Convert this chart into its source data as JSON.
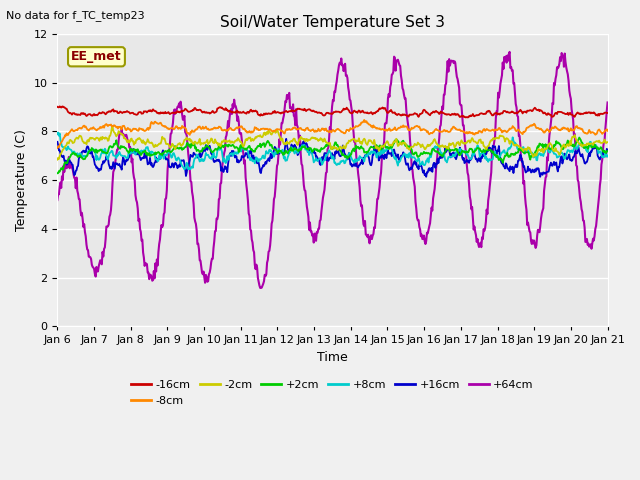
{
  "title": "Soil/Water Temperature Set 3",
  "xlabel": "Time",
  "ylabel": "Temperature (C)",
  "note": "No data for f_TC_temp23",
  "station_label": "EE_met",
  "ylim": [
    0,
    12
  ],
  "yticks": [
    0,
    2,
    4,
    6,
    8,
    10,
    12
  ],
  "x_tick_labels": [
    "Jan 6",
    "Jan 7",
    "Jan 8",
    "Jan 9",
    "Jan 10",
    "Jan 11",
    "Jan 12",
    "Jan 13",
    "Jan 14",
    "Jan 15",
    "Jan 16",
    "Jan 17",
    "Jan 18",
    "Jan 19",
    "Jan 20",
    "Jan 21"
  ],
  "series": [
    {
      "label": "-16cm",
      "color": "#cc0000",
      "base": 8.8,
      "amp": 0.08,
      "trend": -0.003
    },
    {
      "label": "-8cm",
      "color": "#ff8800",
      "base": 8.15,
      "amp": 0.12,
      "trend": -0.005
    },
    {
      "label": "-2cm",
      "color": "#cccc00",
      "base": 7.6,
      "amp": 0.18,
      "trend": -0.008
    },
    {
      "label": "+2cm",
      "color": "#00cc00",
      "base": 7.3,
      "amp": 0.2,
      "trend": -0.005
    },
    {
      "label": "+8cm",
      "color": "#00cccc",
      "base": 7.05,
      "amp": 0.22,
      "trend": -0.003
    },
    {
      "label": "+16cm",
      "color": "#0000cc",
      "base": 6.85,
      "amp": 0.3,
      "trend": 0.008
    },
    {
      "label": "+64cm",
      "color": "#aa00aa",
      "base": 6.5,
      "amp": 3.0,
      "trend": 0.0
    }
  ],
  "background_color": "#e8e8e8",
  "fig_bg_color": "#f0f0f0",
  "title_fontsize": 11,
  "axis_fontsize": 9,
  "tick_fontsize": 8,
  "legend_fontsize": 8
}
